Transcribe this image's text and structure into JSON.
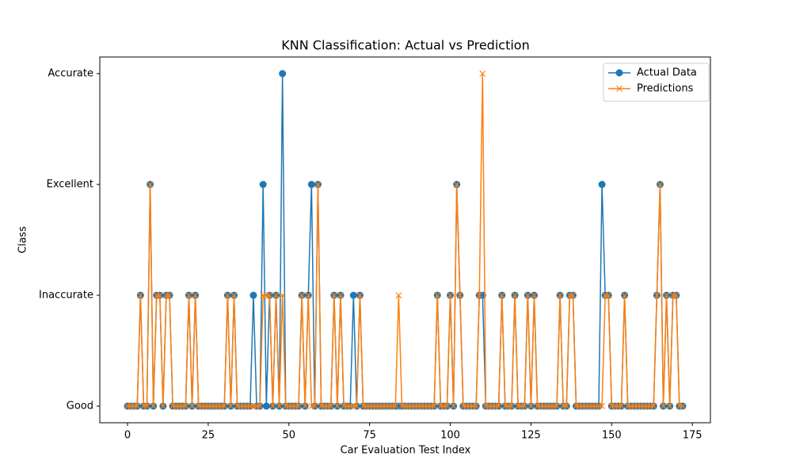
{
  "chart_data": {
    "type": "line",
    "title": "KNN Classification: Actual vs Prediction",
    "xlabel": "Car Evaluation Test Index",
    "ylabel": "Class",
    "x": [
      0,
      1,
      2,
      3,
      4,
      5,
      6,
      7,
      8,
      9,
      10,
      11,
      12,
      13,
      14,
      15,
      16,
      17,
      18,
      19,
      20,
      21,
      22,
      23,
      24,
      25,
      26,
      27,
      28,
      29,
      30,
      31,
      32,
      33,
      34,
      35,
      36,
      37,
      38,
      39,
      40,
      41,
      42,
      43,
      44,
      45,
      46,
      47,
      48,
      49,
      50,
      51,
      52,
      53,
      54,
      55,
      56,
      57,
      58,
      59,
      60,
      61,
      62,
      63,
      64,
      65,
      66,
      67,
      68,
      69,
      70,
      71,
      72,
      73,
      74,
      75,
      76,
      77,
      78,
      79,
      80,
      81,
      82,
      83,
      84,
      85,
      86,
      87,
      88,
      89,
      90,
      91,
      92,
      93,
      94,
      95,
      96,
      97,
      98,
      99,
      100,
      101,
      102,
      103,
      104,
      105,
      106,
      107,
      108,
      109,
      110,
      111,
      112,
      113,
      114,
      115,
      116,
      117,
      118,
      119,
      120,
      121,
      122,
      123,
      124,
      125,
      126,
      127,
      128,
      129,
      130,
      131,
      132,
      133,
      134,
      135,
      136,
      137,
      138,
      139,
      140,
      141,
      142,
      143,
      144,
      145,
      146,
      147,
      148,
      149,
      150,
      151,
      152,
      153,
      154,
      155,
      156,
      157,
      158,
      159,
      160,
      161,
      162,
      163,
      164,
      165,
      166,
      167,
      168,
      169,
      170,
      171,
      172
    ],
    "series": [
      {
        "name": "Actual Data",
        "color": "#1f77b4",
        "marker": "o",
        "values": [
          0,
          0,
          0,
          0,
          1,
          0,
          0,
          2,
          0,
          1,
          1,
          0,
          1,
          1,
          0,
          0,
          0,
          0,
          0,
          1,
          0,
          1,
          0,
          0,
          0,
          0,
          0,
          0,
          0,
          0,
          0,
          1,
          0,
          1,
          0,
          0,
          0,
          0,
          0,
          1,
          0,
          0,
          2,
          0,
          1,
          0,
          1,
          0,
          3,
          0,
          0,
          0,
          0,
          0,
          1,
          0,
          1,
          2,
          0,
          2,
          0,
          0,
          0,
          0,
          1,
          0,
          1,
          0,
          0,
          0,
          1,
          0,
          1,
          0,
          0,
          0,
          0,
          0,
          0,
          0,
          0,
          0,
          0,
          0,
          0,
          0,
          0,
          0,
          0,
          0,
          0,
          0,
          0,
          0,
          0,
          0,
          1,
          0,
          0,
          0,
          1,
          0,
          2,
          1,
          0,
          0,
          0,
          0,
          0,
          1,
          1,
          0,
          0,
          0,
          0,
          0,
          1,
          0,
          0,
          0,
          1,
          0,
          0,
          0,
          1,
          0,
          1,
          0,
          0,
          0,
          0,
          0,
          0,
          0,
          1,
          0,
          0,
          1,
          1,
          0,
          0,
          0,
          0,
          0,
          0,
          0,
          0,
          2,
          1,
          1,
          0,
          0,
          0,
          0,
          1,
          0,
          0,
          0,
          0,
          0,
          0,
          0,
          0,
          0,
          1,
          2,
          0,
          1,
          0,
          1,
          1,
          0,
          0
        ]
      },
      {
        "name": "Predictions",
        "color": "#ff7f0e",
        "marker": "x",
        "values": [
          0,
          0,
          0,
          0,
          1,
          0,
          0,
          2,
          0,
          1,
          1,
          0,
          1,
          1,
          0,
          0,
          0,
          0,
          0,
          1,
          0,
          1,
          0,
          0,
          0,
          0,
          0,
          0,
          0,
          0,
          0,
          1,
          0,
          1,
          0,
          0,
          0,
          0,
          0,
          0,
          0,
          0,
          1,
          1,
          1,
          0,
          1,
          0,
          1,
          0,
          0,
          0,
          0,
          0,
          1,
          0,
          1,
          0,
          0,
          2,
          0,
          0,
          0,
          0,
          1,
          0,
          1,
          0,
          0,
          0,
          0,
          0,
          1,
          0,
          0,
          0,
          0,
          0,
          0,
          0,
          0,
          0,
          0,
          0,
          1,
          0,
          0,
          0,
          0,
          0,
          0,
          0,
          0,
          0,
          0,
          0,
          1,
          0,
          0,
          0,
          1,
          0,
          2,
          1,
          0,
          0,
          0,
          0,
          0,
          1,
          3,
          0,
          0,
          0,
          0,
          0,
          1,
          0,
          0,
          0,
          1,
          0,
          0,
          0,
          1,
          0,
          1,
          0,
          0,
          0,
          0,
          0,
          0,
          0,
          1,
          0,
          0,
          1,
          1,
          0,
          0,
          0,
          0,
          0,
          0,
          0,
          0,
          0,
          1,
          1,
          0,
          0,
          0,
          0,
          1,
          0,
          0,
          0,
          0,
          0,
          0,
          0,
          0,
          0,
          1,
          2,
          0,
          1,
          0,
          1,
          1,
          0,
          0
        ]
      }
    ],
    "xlim": [
      -8.6,
      180.6
    ],
    "xticks": [
      0,
      25,
      50,
      75,
      100,
      125,
      150,
      175
    ],
    "ylim": [
      -0.15,
      3.15
    ],
    "yticks": [
      {
        "value": 0,
        "label": "Good"
      },
      {
        "value": 1,
        "label": "Inaccurate"
      },
      {
        "value": 2,
        "label": "Excellent"
      },
      {
        "value": 3,
        "label": "Accurate"
      }
    ],
    "legend": "upper right",
    "grid": false
  }
}
